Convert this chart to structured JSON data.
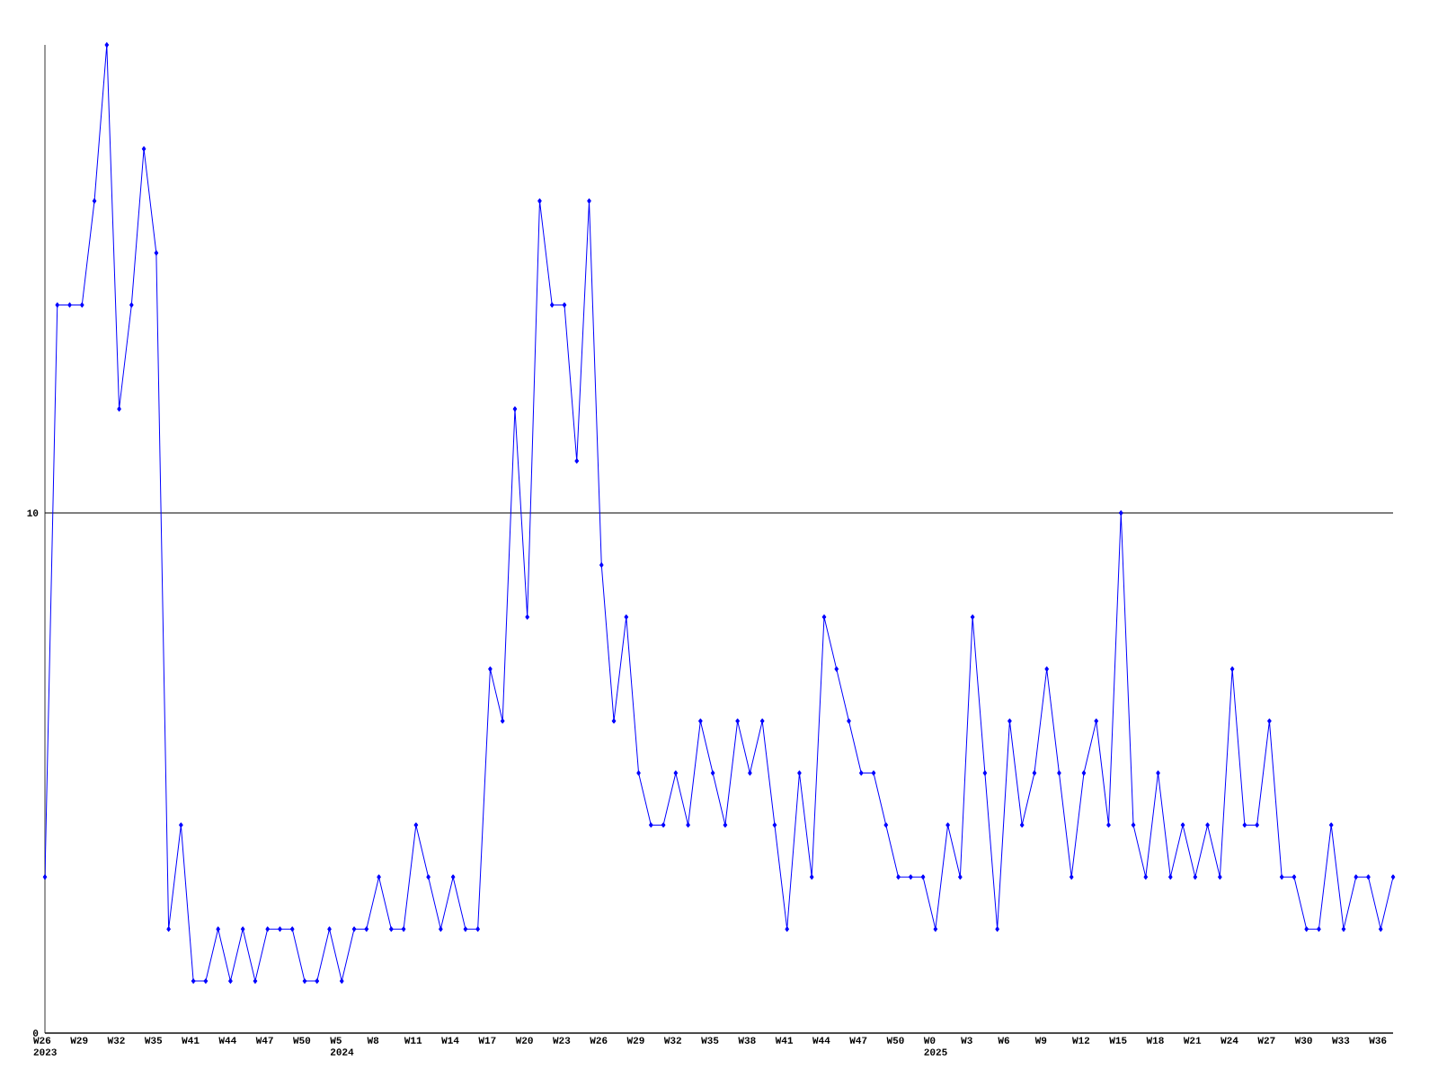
{
  "chart_data": {
    "type": "line",
    "categories": [
      "W26 2023",
      null,
      null,
      "W29",
      null,
      null,
      "W32",
      null,
      null,
      "W35",
      null,
      null,
      "W41",
      null,
      null,
      "W44",
      null,
      null,
      "W47",
      null,
      null,
      "W50",
      null,
      null,
      "W5 2024",
      null,
      null,
      "W8",
      null,
      null,
      "W11",
      null,
      null,
      "W14",
      null,
      null,
      "W17",
      null,
      null,
      "W20",
      null,
      null,
      "W23",
      null,
      null,
      "W26",
      null,
      null,
      "W29",
      null,
      null,
      "W32",
      null,
      null,
      "W35",
      null,
      null,
      "W38",
      null,
      null,
      "W41",
      null,
      null,
      "W44",
      null,
      null,
      "W47",
      null,
      null,
      "W50",
      null,
      null,
      "W0 2025",
      null,
      null,
      "W3",
      null,
      null,
      "W6",
      null,
      null,
      "W9",
      null,
      null,
      "W12",
      null,
      null,
      "W15",
      null,
      null,
      "W18",
      null,
      null,
      "W21",
      null,
      null,
      "W24",
      null,
      null,
      "W27",
      null,
      null,
      "W30",
      null,
      null,
      "W33",
      null,
      null,
      "W36",
      null
    ],
    "values": [
      3,
      14,
      14,
      14,
      16,
      19,
      12,
      14,
      17,
      15,
      2,
      4,
      1,
      1,
      2,
      1,
      2,
      1,
      2,
      2,
      2,
      1,
      1,
      2,
      1,
      2,
      2,
      3,
      2,
      2,
      4,
      3,
      2,
      3,
      2,
      2,
      7,
      6,
      12,
      8,
      16,
      14,
      14,
      11,
      16,
      9,
      6,
      8,
      5,
      4,
      4,
      5,
      4,
      6,
      5,
      4,
      6,
      5,
      6,
      4,
      2,
      5,
      3,
      8,
      7,
      6,
      5,
      5,
      4,
      3,
      3,
      3,
      2,
      4,
      3,
      8,
      5,
      2,
      6,
      4,
      5,
      7,
      5,
      3,
      5,
      6,
      4,
      10,
      4,
      3,
      5,
      3,
      4,
      3,
      4,
      3,
      7,
      4,
      4,
      6,
      3,
      3,
      2,
      2,
      4,
      2,
      3,
      3,
      2,
      3
    ],
    "color": "#0000ff",
    "marker": "diamond",
    "line_style": "solid",
    "ylim": [
      0,
      19
    ],
    "yticks": [
      0,
      10
    ],
    "grid": "y"
  }
}
